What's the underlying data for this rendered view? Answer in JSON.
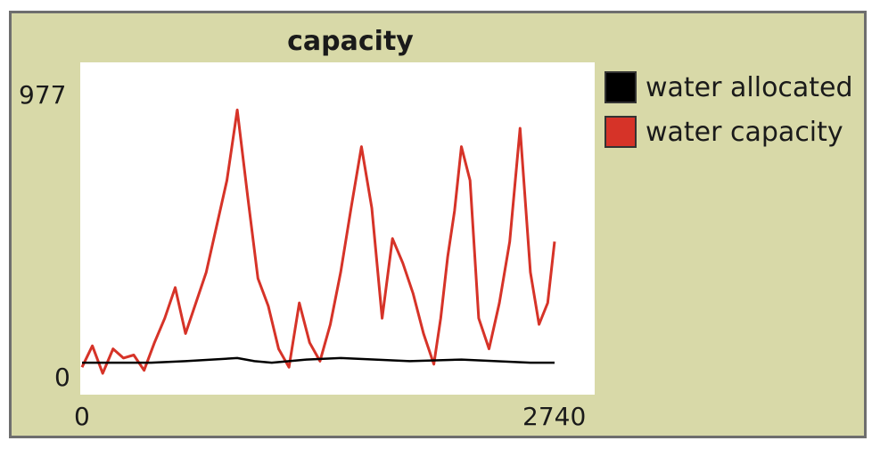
{
  "chart_data": {
    "type": "line",
    "title": "capacity",
    "xlabel": "",
    "ylabel": "",
    "xlim": [
      0,
      2740
    ],
    "ylim": [
      0,
      977
    ],
    "x_ticks": [
      "0",
      "2740"
    ],
    "y_ticks": [
      "0",
      "977"
    ],
    "legend_position": "right",
    "grid": false,
    "series": [
      {
        "name": "water allocated",
        "color": "#000000",
        "x": [
          0,
          400,
          600,
          900,
          1000,
          1100,
          1300,
          1500,
          1900,
          2200,
          2600,
          2740
        ],
        "y": [
          55,
          55,
          60,
          70,
          60,
          55,
          65,
          70,
          60,
          65,
          55,
          55
        ]
      },
      {
        "name": "water capacity",
        "color": "#d63328",
        "x": [
          0,
          60,
          120,
          180,
          240,
          300,
          360,
          420,
          480,
          540,
          600,
          660,
          720,
          780,
          840,
          900,
          960,
          1020,
          1080,
          1140,
          1200,
          1260,
          1320,
          1380,
          1440,
          1500,
          1560,
          1620,
          1680,
          1740,
          1800,
          1860,
          1920,
          1980,
          2040,
          2080,
          2120,
          2160,
          2200,
          2250,
          2300,
          2360,
          2420,
          2480,
          2540,
          2600,
          2650,
          2700,
          2740
        ],
        "y": [
          40,
          110,
          20,
          100,
          70,
          80,
          30,
          120,
          200,
          300,
          150,
          250,
          350,
          500,
          650,
          880,
          600,
          330,
          240,
          100,
          40,
          250,
          120,
          60,
          180,
          350,
          560,
          760,
          560,
          200,
          460,
          380,
          280,
          150,
          50,
          200,
          400,
          550,
          760,
          650,
          200,
          100,
          250,
          450,
          820,
          350,
          180,
          250,
          450
        ]
      }
    ]
  }
}
